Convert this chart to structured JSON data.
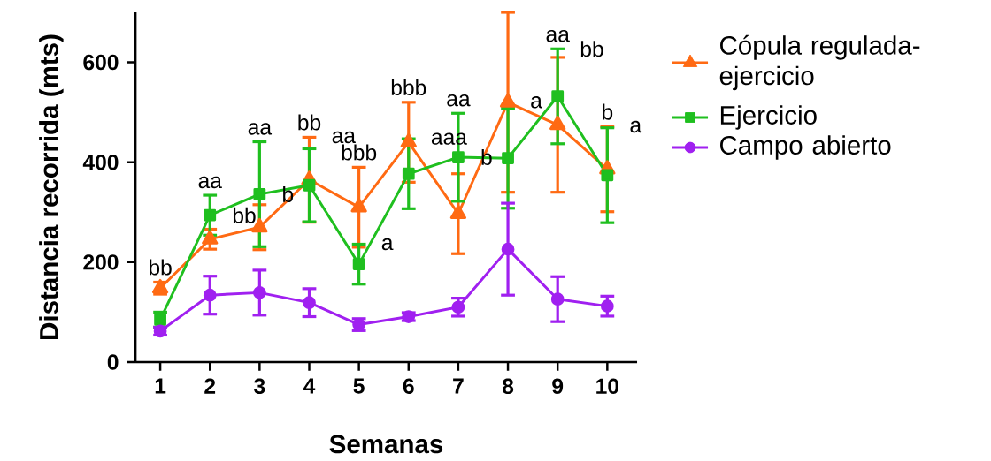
{
  "chart_data": {
    "type": "line",
    "xlabel": "Semanas",
    "ylabel": "Distancia recorrida (mts)",
    "categories": [
      "1",
      "2",
      "3",
      "4",
      "5",
      "6",
      "7",
      "8",
      "9",
      "10"
    ],
    "series": [
      {
        "name": "Cópula regulada-ejercicio",
        "color": "#ff6a13",
        "marker": "triangle",
        "values": [
          148,
          246,
          270,
          365,
          310,
          440,
          297,
          520,
          475,
          386
        ],
        "errors": [
          12,
          20,
          45,
          85,
          80,
          80,
          80,
          180,
          135,
          85
        ]
      },
      {
        "name": "Ejercicio",
        "color": "#1fbf1f",
        "marker": "square",
        "values": [
          85,
          294,
          336,
          354,
          196,
          377,
          410,
          408,
          532,
          374
        ],
        "errors": [
          15,
          40,
          105,
          73,
          40,
          70,
          88,
          100,
          95,
          95
        ]
      },
      {
        "name": "Campo abierto",
        "color": "#a020f0",
        "marker": "circle",
        "values": [
          62,
          134,
          139,
          119,
          75,
          91,
          110,
          226,
          126,
          112
        ],
        "errors": [
          8,
          38,
          45,
          28,
          12,
          8,
          18,
          92,
          45,
          20
        ]
      }
    ],
    "ylim": [
      0,
      700
    ],
    "yticks": [
      0,
      200,
      400,
      600
    ],
    "grid": false,
    "legend": "right",
    "annotations": [
      {
        "text": "bb",
        "x": "1",
        "y": 160
      },
      {
        "text": "aa",
        "x": "2",
        "y": 334
      },
      {
        "text": "bb",
        "x": "2",
        "y": 294
      },
      {
        "text": "aa",
        "x": "3",
        "y": 441
      },
      {
        "text": "b",
        "x": "3",
        "y": 336
      },
      {
        "text": "bb",
        "x": "4",
        "y": 450
      },
      {
        "text": "aa",
        "x": "4",
        "y": 450
      },
      {
        "text": "bbb",
        "x": "5",
        "y": 390
      },
      {
        "text": "a",
        "x": "5",
        "y": 236
      },
      {
        "text": "bbb",
        "x": "6",
        "y": 520
      },
      {
        "text": "aaa",
        "x": "6",
        "y": 447
      },
      {
        "text": "aa",
        "x": "7",
        "y": 498
      },
      {
        "text": "b",
        "x": "7",
        "y": 410
      },
      {
        "text": "a",
        "x": "8",
        "y": 520
      },
      {
        "text": "aa",
        "x": "9",
        "y": 627
      },
      {
        "text": "bb",
        "x": "9",
        "y": 627
      },
      {
        "text": "b",
        "x": "10",
        "y": 471
      },
      {
        "text": "a",
        "x": "10",
        "y": 471
      }
    ]
  }
}
